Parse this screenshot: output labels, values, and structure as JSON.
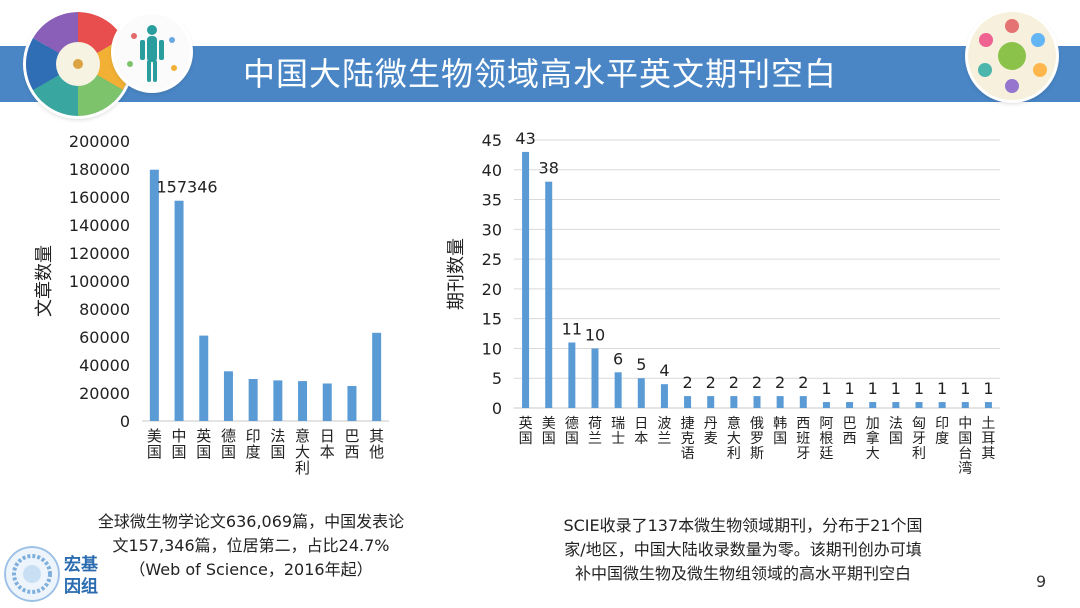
{
  "slide": {
    "title": "中国大陆微生物领域高水平英文期刊空白",
    "page_number": "9",
    "brand_text": "宏基因组"
  },
  "left_caption": {
    "line1": "全球微生物学论文636,069篇，中国发表论",
    "line2": "文157,346篇，位居第二，占比24.7%",
    "line3": "（Web of Science，2016年起）"
  },
  "right_caption": {
    "line1": "SCIE收录了137本微生物领域期刊，分布于21个国",
    "line2": "家/地区，中国大陆收录数量为零。该期刊创办可填",
    "line3": "补中国微生物及微生物组领域的高水平期刊空白"
  },
  "colors": {
    "bar": "#5b9bd5",
    "title_bar": "#4a86c5",
    "grid": "#d9d9d9"
  },
  "chart_data": [
    {
      "type": "bar",
      "title": "",
      "xlabel": "",
      "ylabel": "文章数量",
      "ylim": [
        0,
        200000
      ],
      "yticks": [
        0,
        20000,
        40000,
        60000,
        80000,
        100000,
        120000,
        140000,
        160000,
        180000,
        200000
      ],
      "grid": false,
      "categories": [
        "美国",
        "中国",
        "英国",
        "德国",
        "印度",
        "法国",
        "意大利",
        "日本",
        "巴西",
        "其他"
      ],
      "values": [
        179500,
        157346,
        61000,
        35500,
        30000,
        29000,
        28500,
        26800,
        25000,
        63000
      ],
      "data_labels": {
        "1": "157346"
      }
    },
    {
      "type": "bar",
      "title": "",
      "xlabel": "",
      "ylabel": "期刊数量",
      "ylim": [
        0,
        45
      ],
      "yticks": [
        0,
        5,
        10,
        15,
        20,
        25,
        30,
        35,
        40,
        45
      ],
      "grid": true,
      "categories": [
        "英国",
        "美国",
        "德国",
        "荷兰",
        "瑞士",
        "日本",
        "波兰",
        "捷克语",
        "丹麦",
        "意大利",
        "俄罗斯",
        "韩国",
        "西班牙",
        "阿根廷",
        "巴西",
        "加拿大",
        "法国",
        "匈牙利",
        "印度",
        "中国台湾",
        "土耳其"
      ],
      "values": [
        43,
        38,
        11,
        10,
        6,
        5,
        4,
        2,
        2,
        2,
        2,
        2,
        2,
        1,
        1,
        1,
        1,
        1,
        1,
        1,
        1
      ]
    }
  ]
}
